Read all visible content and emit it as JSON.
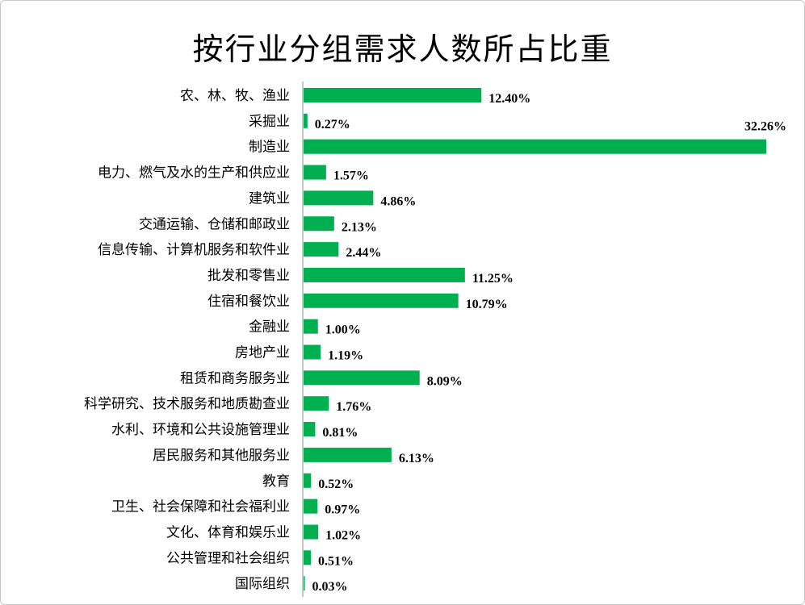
{
  "chart_data": {
    "type": "bar",
    "orientation": "horizontal",
    "title": "按行业分组需求人数所占比重",
    "categories": [
      "农、林、牧、渔业",
      "采掘业",
      "制造业",
      "电力、燃气及水的生产和供应业",
      "建筑业",
      "交通运输、仓储和邮政业",
      "信息传输、计算机服务和软件业",
      "批发和零售业",
      "住宿和餐饮业",
      "金融业",
      "房地产业",
      "租赁和商务服务业",
      "科学研究、技术服务和地质勘查业",
      "水利、环境和公共设施管理业",
      "居民服务和其他服务业",
      "教育",
      "卫生、社会保障和社会福利业",
      "文化、体育和娱乐业",
      "公共管理和社会组织",
      "国际组织"
    ],
    "values": [
      12.4,
      0.27,
      32.26,
      1.57,
      4.86,
      2.13,
      2.44,
      11.25,
      10.79,
      1.0,
      1.19,
      8.09,
      1.76,
      0.81,
      6.13,
      0.52,
      0.97,
      1.02,
      0.51,
      0.03
    ],
    "value_labels": [
      "12.40%",
      "0.27%",
      "32.26%",
      "1.57%",
      "4.86%",
      "2.13%",
      "2.44%",
      "11.25%",
      "10.79%",
      "1.00%",
      "1.19%",
      "8.09%",
      "1.76%",
      "0.81%",
      "6.13%",
      "0.52%",
      "0.97%",
      "1.02%",
      "0.51%",
      "0.03%"
    ],
    "unit": "%",
    "xlim": [
      0,
      32.26
    ],
    "grid": false,
    "legend": "none",
    "bar_color": "#00b050"
  }
}
